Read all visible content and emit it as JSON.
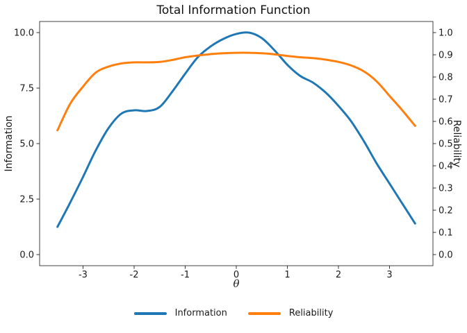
{
  "chart_data": {
    "type": "line",
    "title": "Total Information Function",
    "xlabel": "θ",
    "ylabel_left": "Information",
    "ylabel_right": "Reliability",
    "grid": false,
    "x_range": [
      -3.85,
      3.85
    ],
    "y_left_range": [
      -0.5,
      10.5
    ],
    "y_right_range": [
      -0.05,
      1.05
    ],
    "x_ticks": {
      "values": [
        -3,
        -2,
        -1,
        0,
        1,
        2,
        3
      ],
      "labels": [
        "-3",
        "-2",
        "-1",
        "0",
        "1",
        "2",
        "3"
      ]
    },
    "y_left_ticks": {
      "values": [
        0,
        2.5,
        5,
        7.5,
        10
      ],
      "labels": [
        "0.0",
        "2.5",
        "5.0",
        "7.5",
        "10.0"
      ]
    },
    "y_right_ticks": {
      "values": [
        0,
        0.1,
        0.2,
        0.3,
        0.4,
        0.5,
        0.6,
        0.7,
        0.8,
        0.9,
        1.0
      ],
      "labels": [
        "0.0",
        "0.1",
        "0.2",
        "0.3",
        "0.4",
        "0.5",
        "0.6",
        "0.7",
        "0.8",
        "0.9",
        "1.0"
      ]
    },
    "x": [
      -3.5,
      -3.25,
      -3.0,
      -2.75,
      -2.5,
      -2.25,
      -2.0,
      -1.75,
      -1.5,
      -1.25,
      -1.0,
      -0.75,
      -0.5,
      -0.25,
      0.0,
      0.25,
      0.5,
      0.75,
      1.0,
      1.25,
      1.5,
      1.75,
      2.0,
      2.25,
      2.5,
      2.75,
      3.0,
      3.25,
      3.5
    ],
    "series": [
      {
        "name": "Information",
        "axis": "left",
        "color": "#1f77b4",
        "values": [
          1.25,
          2.35,
          3.5,
          4.7,
          5.7,
          6.35,
          6.5,
          6.47,
          6.65,
          7.35,
          8.15,
          8.9,
          9.38,
          9.72,
          9.94,
          10.0,
          9.75,
          9.2,
          8.55,
          8.05,
          7.75,
          7.3,
          6.7,
          6.0,
          5.1,
          4.1,
          3.2,
          2.3,
          1.4
        ],
        "y_extent": [
          1.25,
          10.0
        ]
      },
      {
        "name": "Reliability",
        "axis": "right",
        "color": "#ff7f0e",
        "values": [
          0.56,
          0.68,
          0.757,
          0.82,
          0.847,
          0.861,
          0.866,
          0.866,
          0.868,
          0.877,
          0.889,
          0.897,
          0.903,
          0.907,
          0.909,
          0.909,
          0.907,
          0.902,
          0.895,
          0.889,
          0.885,
          0.878,
          0.868,
          0.852,
          0.825,
          0.78,
          0.715,
          0.65,
          0.58
        ],
        "y_extent": [
          0.56,
          0.909
        ]
      }
    ],
    "legend": {
      "position": "bottom-center",
      "entries": [
        "Information",
        "Reliability"
      ]
    }
  },
  "styles": {
    "background": "#ffffff",
    "panel_border": "#404040",
    "tick_color": "#333333",
    "text_color": "#1a1a1a",
    "information_color": "#1f77b4",
    "reliability_color": "#ff7f0e"
  }
}
